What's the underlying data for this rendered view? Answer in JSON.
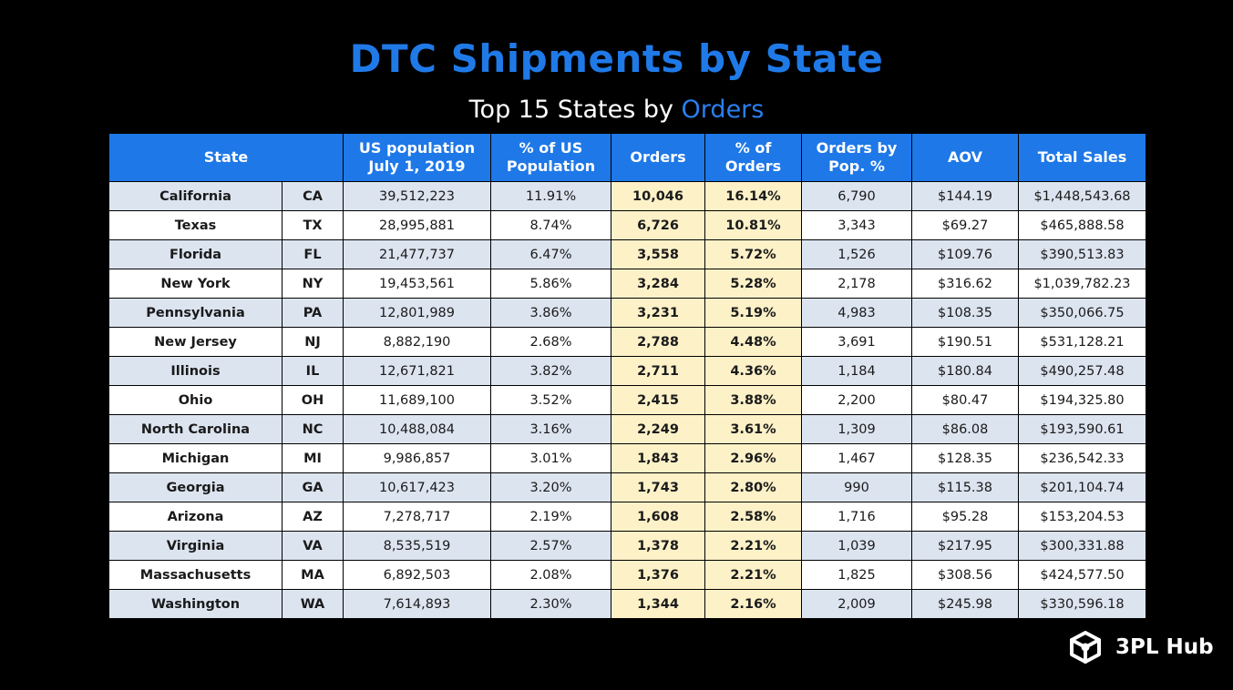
{
  "header": {
    "title": "DTC Shipments by State",
    "subtitle_prefix": "Top 15 States by ",
    "subtitle_accent": "Orders"
  },
  "brand": {
    "name": "3PL Hub",
    "icon": "cube-network-icon"
  },
  "colors": {
    "title": "#1f7ae8",
    "header_bg": "#1e78e8",
    "row_alt": "#dce4f0",
    "row_plain": "#ffffff",
    "highlight": "#fdf1c8"
  },
  "chart_data": {
    "type": "table",
    "title": "DTC Shipments by State",
    "subtitle": "Top 15 States by Orders",
    "columns": [
      "State",
      "US population\nJuly 1, 2019",
      "% of US\nPopulation",
      "Orders",
      "% of Orders",
      "Orders by\nPop. %",
      "AOV",
      "Total Sales"
    ],
    "rows": [
      {
        "state": "California",
        "abbr": "CA",
        "population": "39,512,223",
        "pct_pop": "11.91%",
        "orders": "10,046",
        "pct_orders": "16.14%",
        "orders_by_pop": "6,790",
        "aov": "$144.19",
        "total_sales": "$1,448,543.68"
      },
      {
        "state": "Texas",
        "abbr": "TX",
        "population": "28,995,881",
        "pct_pop": "8.74%",
        "orders": "6,726",
        "pct_orders": "10.81%",
        "orders_by_pop": "3,343",
        "aov": "$69.27",
        "total_sales": "$465,888.58"
      },
      {
        "state": "Florida",
        "abbr": "FL",
        "population": "21,477,737",
        "pct_pop": "6.47%",
        "orders": "3,558",
        "pct_orders": "5.72%",
        "orders_by_pop": "1,526",
        "aov": "$109.76",
        "total_sales": "$390,513.83"
      },
      {
        "state": "New York",
        "abbr": "NY",
        "population": "19,453,561",
        "pct_pop": "5.86%",
        "orders": "3,284",
        "pct_orders": "5.28%",
        "orders_by_pop": "2,178",
        "aov": "$316.62",
        "total_sales": "$1,039,782.23"
      },
      {
        "state": "Pennsylvania",
        "abbr": "PA",
        "population": "12,801,989",
        "pct_pop": "3.86%",
        "orders": "3,231",
        "pct_orders": "5.19%",
        "orders_by_pop": "4,983",
        "aov": "$108.35",
        "total_sales": "$350,066.75"
      },
      {
        "state": "New Jersey",
        "abbr": "NJ",
        "population": "8,882,190",
        "pct_pop": "2.68%",
        "orders": "2,788",
        "pct_orders": "4.48%",
        "orders_by_pop": "3,691",
        "aov": "$190.51",
        "total_sales": "$531,128.21"
      },
      {
        "state": "Illinois",
        "abbr": "IL",
        "population": "12,671,821",
        "pct_pop": "3.82%",
        "orders": "2,711",
        "pct_orders": "4.36%",
        "orders_by_pop": "1,184",
        "aov": "$180.84",
        "total_sales": "$490,257.48"
      },
      {
        "state": "Ohio",
        "abbr": "OH",
        "population": "11,689,100",
        "pct_pop": "3.52%",
        "orders": "2,415",
        "pct_orders": "3.88%",
        "orders_by_pop": "2,200",
        "aov": "$80.47",
        "total_sales": "$194,325.80"
      },
      {
        "state": "North Carolina",
        "abbr": "NC",
        "population": "10,488,084",
        "pct_pop": "3.16%",
        "orders": "2,249",
        "pct_orders": "3.61%",
        "orders_by_pop": "1,309",
        "aov": "$86.08",
        "total_sales": "$193,590.61"
      },
      {
        "state": "Michigan",
        "abbr": "MI",
        "population": "9,986,857",
        "pct_pop": "3.01%",
        "orders": "1,843",
        "pct_orders": "2.96%",
        "orders_by_pop": "1,467",
        "aov": "$128.35",
        "total_sales": "$236,542.33"
      },
      {
        "state": "Georgia",
        "abbr": "GA",
        "population": "10,617,423",
        "pct_pop": "3.20%",
        "orders": "1,743",
        "pct_orders": "2.80%",
        "orders_by_pop": "990",
        "aov": "$115.38",
        "total_sales": "$201,104.74"
      },
      {
        "state": "Arizona",
        "abbr": "AZ",
        "population": "7,278,717",
        "pct_pop": "2.19%",
        "orders": "1,608",
        "pct_orders": "2.58%",
        "orders_by_pop": "1,716",
        "aov": "$95.28",
        "total_sales": "$153,204.53"
      },
      {
        "state": "Virginia",
        "abbr": "VA",
        "population": "8,535,519",
        "pct_pop": "2.57%",
        "orders": "1,378",
        "pct_orders": "2.21%",
        "orders_by_pop": "1,039",
        "aov": "$217.95",
        "total_sales": "$300,331.88"
      },
      {
        "state": "Massachusetts",
        "abbr": "MA",
        "population": "6,892,503",
        "pct_pop": "2.08%",
        "orders": "1,376",
        "pct_orders": "2.21%",
        "orders_by_pop": "1,825",
        "aov": "$308.56",
        "total_sales": "$424,577.50"
      },
      {
        "state": "Washington",
        "abbr": "WA",
        "population": "7,614,893",
        "pct_pop": "2.30%",
        "orders": "1,344",
        "pct_orders": "2.16%",
        "orders_by_pop": "2,009",
        "aov": "$245.98",
        "total_sales": "$330,596.18"
      }
    ]
  }
}
